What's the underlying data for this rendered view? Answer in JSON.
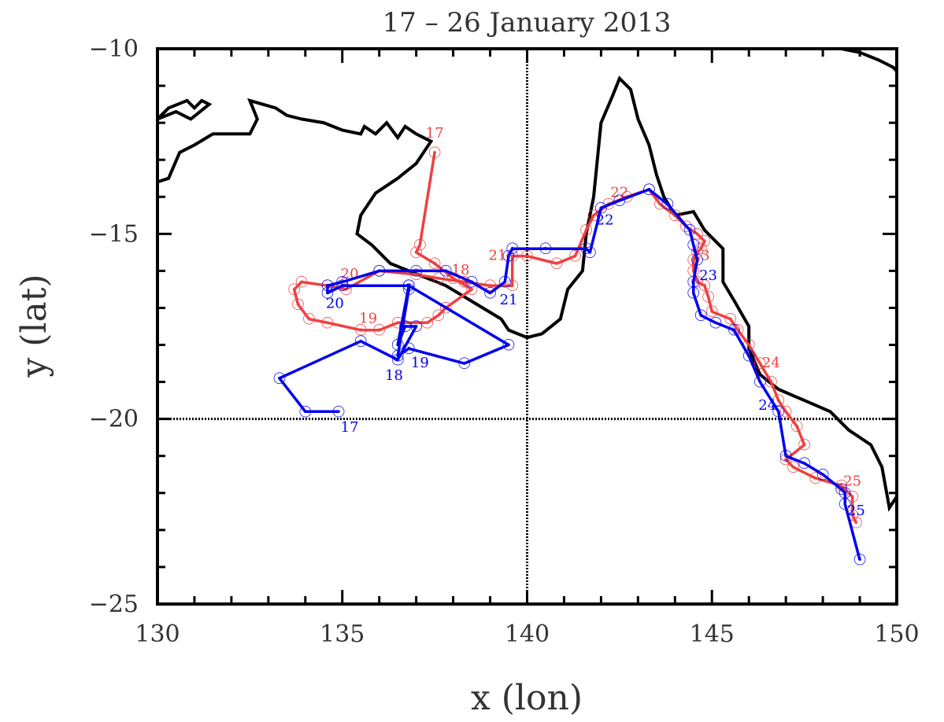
{
  "chart_data": {
    "type": "line",
    "title": "17 – 26 January 2013",
    "xlabel": "x (lon)",
    "ylabel": "y (lat)",
    "xlim": [
      130,
      150
    ],
    "ylim": [
      -25,
      -10
    ],
    "xticks": [
      130,
      135,
      140,
      145,
      150
    ],
    "yticks": [
      -10,
      -15,
      -20,
      -25
    ],
    "xtick_labels": [
      "130",
      "135",
      "140",
      "145",
      "150"
    ],
    "ytick_labels": [
      "−10",
      "−15",
      "−20",
      "−25"
    ],
    "reference_lines": {
      "x": 140,
      "y": -20
    },
    "marker_glyph": "☉",
    "colors": {
      "red": "#f04040",
      "blue": "#0000ee",
      "coast": "#000000"
    },
    "coastline": [
      [
        [
          130.0,
          -11.9
        ],
        [
          130.3,
          -11.6
        ],
        [
          130.8,
          -11.4
        ],
        [
          131.0,
          -11.6
        ],
        [
          131.2,
          -11.4
        ],
        [
          131.4,
          -11.5
        ],
        [
          130.9,
          -11.9
        ],
        [
          130.5,
          -11.7
        ],
        [
          130.0,
          -11.9
        ]
      ],
      [
        [
          130.0,
          -13.6
        ],
        [
          130.3,
          -13.5
        ],
        [
          130.6,
          -12.8
        ],
        [
          131.0,
          -12.6
        ],
        [
          131.5,
          -12.3
        ],
        [
          132.0,
          -12.3
        ],
        [
          132.5,
          -12.3
        ],
        [
          132.7,
          -11.9
        ],
        [
          132.5,
          -11.4
        ],
        [
          133.2,
          -11.6
        ],
        [
          133.5,
          -11.8
        ],
        [
          133.9,
          -11.9
        ],
        [
          134.5,
          -12.0
        ],
        [
          135.0,
          -12.2
        ],
        [
          135.5,
          -12.3
        ],
        [
          135.6,
          -12.1
        ],
        [
          135.9,
          -12.3
        ],
        [
          136.2,
          -12.0
        ],
        [
          136.5,
          -12.4
        ],
        [
          136.7,
          -12.1
        ],
        [
          137.0,
          -12.3
        ],
        [
          137.4,
          -12.5
        ],
        [
          137.0,
          -13.1
        ],
        [
          136.5,
          -13.5
        ],
        [
          135.9,
          -13.9
        ],
        [
          135.5,
          -14.5
        ],
        [
          135.4,
          -15.0
        ],
        [
          135.8,
          -15.3
        ],
        [
          136.3,
          -15.8
        ],
        [
          136.8,
          -16.0
        ],
        [
          137.3,
          -16.2
        ],
        [
          137.8,
          -16.4
        ],
        [
          138.3,
          -16.7
        ],
        [
          138.8,
          -17.0
        ],
        [
          139.3,
          -17.3
        ],
        [
          139.5,
          -17.6
        ],
        [
          140.0,
          -17.8
        ],
        [
          140.4,
          -17.7
        ],
        [
          140.9,
          -17.3
        ],
        [
          141.1,
          -16.5
        ],
        [
          141.5,
          -16.0
        ],
        [
          141.6,
          -15.0
        ],
        [
          141.8,
          -14.0
        ],
        [
          141.9,
          -13.0
        ],
        [
          142.0,
          -12.0
        ],
        [
          142.3,
          -11.3
        ],
        [
          142.5,
          -10.8
        ],
        [
          142.8,
          -11.1
        ],
        [
          143.0,
          -11.9
        ],
        [
          143.3,
          -12.6
        ],
        [
          143.5,
          -13.4
        ],
        [
          143.7,
          -14.0
        ],
        [
          144.0,
          -14.5
        ],
        [
          144.5,
          -14.4
        ],
        [
          144.8,
          -14.9
        ],
        [
          145.3,
          -15.4
        ],
        [
          145.3,
          -16.3
        ],
        [
          145.6,
          -16.8
        ],
        [
          146.0,
          -17.5
        ],
        [
          146.0,
          -18.1
        ],
        [
          146.3,
          -18.8
        ],
        [
          146.8,
          -19.2
        ],
        [
          147.5,
          -19.5
        ],
        [
          148.2,
          -19.8
        ],
        [
          148.7,
          -20.3
        ],
        [
          149.3,
          -20.7
        ],
        [
          149.6,
          -21.3
        ],
        [
          149.8,
          -22.4
        ],
        [
          150.0,
          -22.1
        ]
      ],
      [
        [
          148.5,
          -10.0
        ],
        [
          149.0,
          -10.1
        ],
        [
          149.5,
          -10.3
        ],
        [
          149.9,
          -10.5
        ],
        [
          150.0,
          -10.6
        ]
      ]
    ],
    "series": [
      {
        "name": "red",
        "color": "#f04040",
        "points": [
          [
            137.5,
            -12.8
          ],
          [
            137.1,
            -15.3
          ],
          [
            137.0,
            -15.5
          ],
          [
            137.5,
            -15.8
          ],
          [
            138.0,
            -16.2
          ],
          [
            138.5,
            -16.5
          ],
          [
            137.8,
            -17.0
          ],
          [
            137.6,
            -17.2
          ],
          [
            137.3,
            -17.4
          ],
          [
            136.5,
            -17.4
          ],
          [
            136.0,
            -17.6
          ],
          [
            135.5,
            -17.6
          ],
          [
            134.6,
            -17.4
          ],
          [
            134.1,
            -17.3
          ],
          [
            133.8,
            -16.9
          ],
          [
            133.7,
            -16.5
          ],
          [
            133.9,
            -16.3
          ],
          [
            134.6,
            -16.4
          ],
          [
            135.1,
            -16.5
          ],
          [
            136.0,
            -16.0
          ],
          [
            137.0,
            -16.1
          ],
          [
            137.6,
            -16.2
          ],
          [
            138.3,
            -16.3
          ],
          [
            139.0,
            -16.4
          ],
          [
            139.6,
            -16.4
          ],
          [
            139.6,
            -15.6
          ],
          [
            140.0,
            -15.6
          ],
          [
            140.8,
            -15.8
          ],
          [
            141.3,
            -15.6
          ],
          [
            141.6,
            -14.9
          ],
          [
            141.8,
            -14.5
          ],
          [
            142.2,
            -14.2
          ],
          [
            142.7,
            -14.0
          ],
          [
            143.3,
            -13.8
          ],
          [
            143.6,
            -14.2
          ],
          [
            144.0,
            -14.5
          ],
          [
            144.3,
            -14.8
          ],
          [
            144.6,
            -15.0
          ],
          [
            144.8,
            -15.2
          ],
          [
            144.7,
            -15.4
          ],
          [
            144.6,
            -15.5
          ],
          [
            144.5,
            -15.7
          ],
          [
            144.5,
            -16.0
          ],
          [
            144.6,
            -16.3
          ],
          [
            144.8,
            -16.4
          ],
          [
            144.9,
            -16.7
          ],
          [
            145.0,
            -17.1
          ],
          [
            145.5,
            -17.3
          ],
          [
            145.7,
            -17.6
          ],
          [
            146.0,
            -18.0
          ],
          [
            146.3,
            -18.5
          ],
          [
            146.6,
            -19.0
          ],
          [
            146.8,
            -19.5
          ],
          [
            147.0,
            -19.8
          ],
          [
            147.3,
            -20.2
          ],
          [
            147.5,
            -20.7
          ],
          [
            147.0,
            -21.1
          ],
          [
            147.2,
            -21.3
          ],
          [
            147.8,
            -21.6
          ],
          [
            148.5,
            -21.8
          ],
          [
            148.8,
            -22.1
          ],
          [
            148.8,
            -22.6
          ],
          [
            148.9,
            -22.8
          ]
        ],
        "day_labels": [
          {
            "day": "17",
            "lon": 137.5,
            "lat": -12.4
          },
          {
            "day": "18",
            "lon": 138.2,
            "lat": -16.1
          },
          {
            "day": "19",
            "lon": 135.7,
            "lat": -17.4
          },
          {
            "day": "20",
            "lon": 135.2,
            "lat": -16.2
          },
          {
            "day": "21",
            "lon": 139.2,
            "lat": -15.7
          },
          {
            "day": "22",
            "lon": 142.5,
            "lat": -14.0
          },
          {
            "day": "23",
            "lon": 144.7,
            "lat": -15.7
          },
          {
            "day": "24",
            "lon": 146.6,
            "lat": -18.6
          },
          {
            "day": "25",
            "lon": 148.8,
            "lat": -21.8
          }
        ]
      },
      {
        "name": "blue",
        "color": "#0000ee",
        "points": [
          [
            134.9,
            -19.8
          ],
          [
            134.0,
            -19.8
          ],
          [
            133.3,
            -18.9
          ],
          [
            135.5,
            -17.9
          ],
          [
            136.5,
            -18.4
          ],
          [
            137.0,
            -17.5
          ],
          [
            136.7,
            -17.5
          ],
          [
            136.5,
            -18.0
          ],
          [
            136.8,
            -16.4
          ],
          [
            139.5,
            -18.0
          ],
          [
            138.3,
            -18.5
          ],
          [
            136.8,
            -18.1
          ],
          [
            136.5,
            -18.3
          ],
          [
            136.8,
            -16.5
          ],
          [
            136.8,
            -16.4
          ],
          [
            135.0,
            -16.4
          ],
          [
            134.6,
            -16.6
          ],
          [
            134.6,
            -16.4
          ],
          [
            135.0,
            -16.3
          ],
          [
            136.0,
            -16.0
          ],
          [
            137.0,
            -16.0
          ],
          [
            137.8,
            -16.0
          ],
          [
            138.5,
            -16.3
          ],
          [
            139.0,
            -16.6
          ],
          [
            139.4,
            -16.3
          ],
          [
            139.5,
            -15.6
          ],
          [
            139.6,
            -15.4
          ],
          [
            140.5,
            -15.4
          ],
          [
            141.6,
            -15.4
          ],
          [
            141.7,
            -15.5
          ],
          [
            142.0,
            -14.3
          ],
          [
            142.5,
            -14.1
          ],
          [
            143.3,
            -13.8
          ],
          [
            143.8,
            -14.2
          ],
          [
            144.4,
            -14.9
          ],
          [
            144.5,
            -15.3
          ],
          [
            144.6,
            -15.7
          ],
          [
            144.5,
            -16.3
          ],
          [
            144.5,
            -16.6
          ],
          [
            144.7,
            -17.2
          ],
          [
            145.1,
            -17.4
          ],
          [
            145.6,
            -17.6
          ],
          [
            146.0,
            -18.3
          ],
          [
            146.3,
            -19.0
          ],
          [
            146.8,
            -19.8
          ],
          [
            147.0,
            -21.0
          ],
          [
            147.5,
            -21.2
          ],
          [
            148.0,
            -21.5
          ],
          [
            148.5,
            -21.9
          ],
          [
            148.6,
            -22.0
          ],
          [
            148.6,
            -22.3
          ],
          [
            149.0,
            -23.8
          ]
        ],
        "day_labels": [
          {
            "day": "17",
            "lon": 135.2,
            "lat": -20.35
          },
          {
            "day": "18",
            "lon": 136.4,
            "lat": -18.95
          },
          {
            "day": "19",
            "lon": 137.1,
            "lat": -18.6
          },
          {
            "day": "20",
            "lon": 134.8,
            "lat": -17.0
          },
          {
            "day": "21",
            "lon": 139.5,
            "lat": -16.9
          },
          {
            "day": "22",
            "lon": 142.1,
            "lat": -14.75
          },
          {
            "day": "23",
            "lon": 144.9,
            "lat": -16.25
          },
          {
            "day": "24",
            "lon": 146.5,
            "lat": -19.75
          },
          {
            "day": "25",
            "lon": 148.9,
            "lat": -22.6
          }
        ]
      }
    ]
  }
}
